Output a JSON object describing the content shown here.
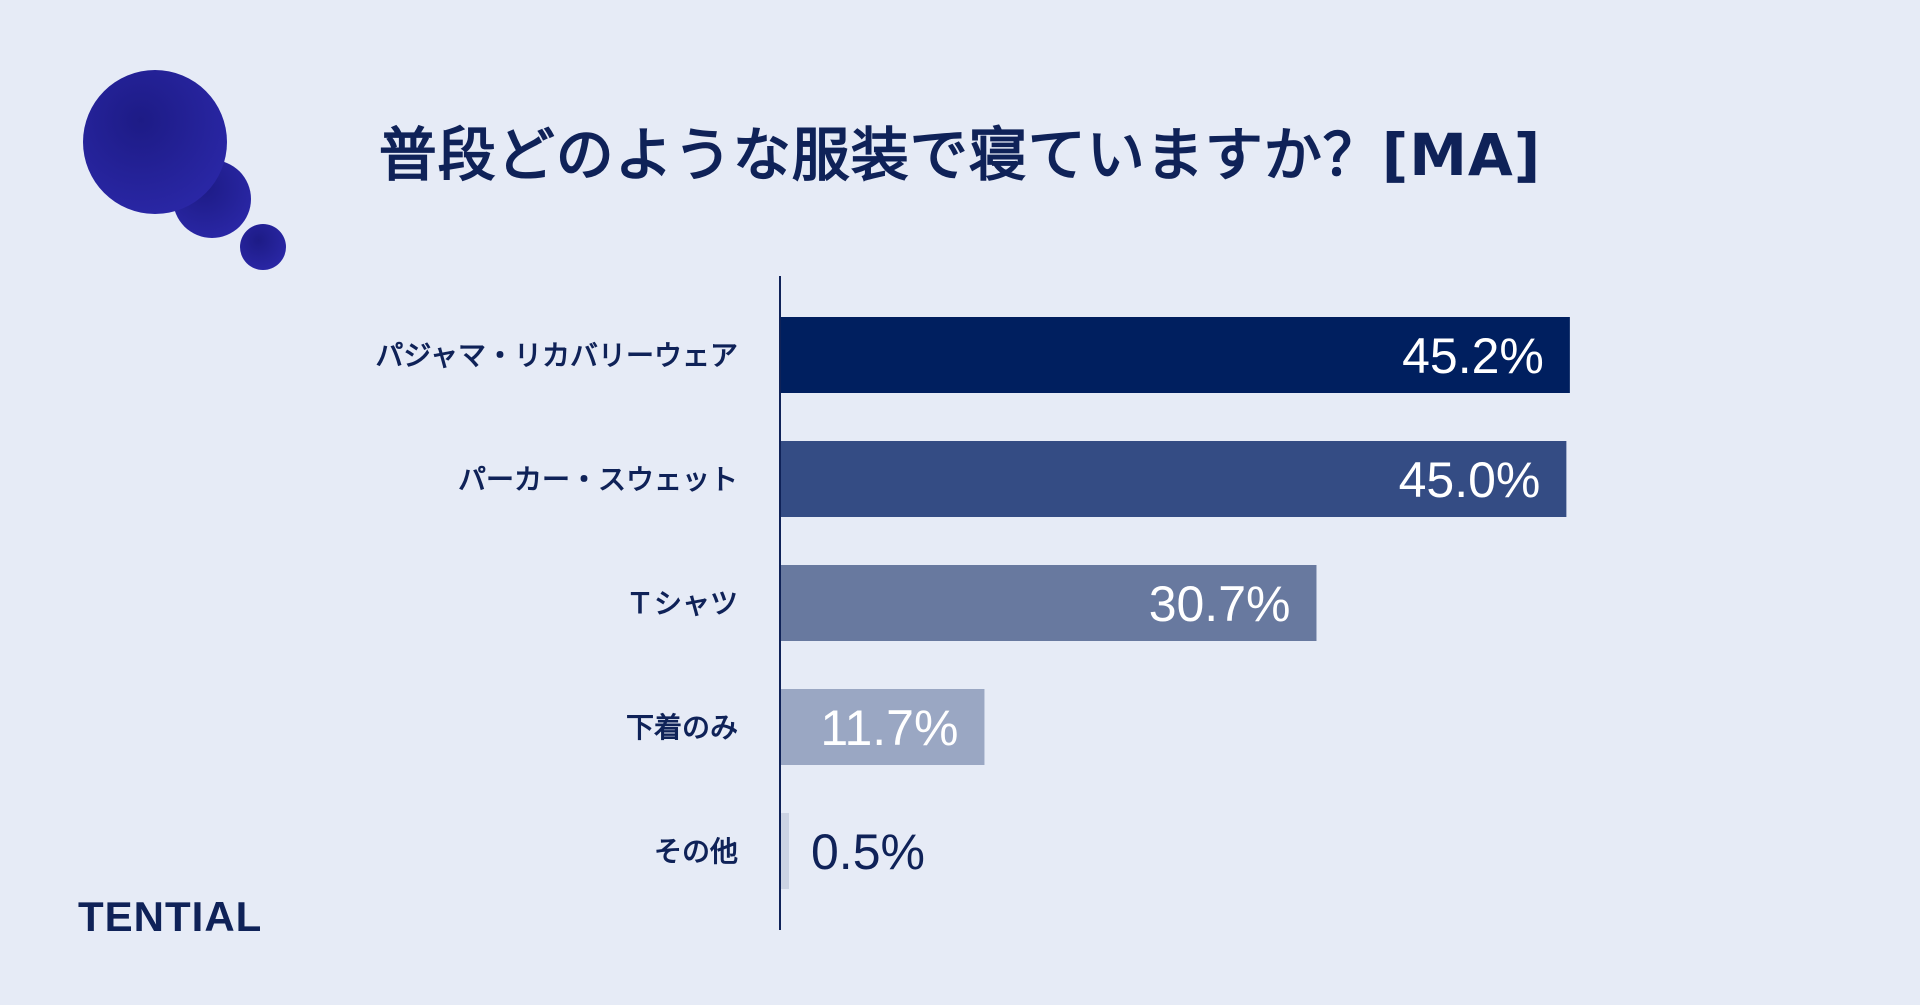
{
  "title": "普段どのような服装で寝ていますか？[MA]",
  "brand": "TENTIAL",
  "colors": {
    "background": "#e6ebf6",
    "text": "#0f2258",
    "axis": "#0f2258",
    "bars": [
      "#001f5f",
      "#344c84",
      "#68799f",
      "#9aa7c3",
      "#ccd3e3"
    ],
    "bubble": "#221f92"
  },
  "chart_data": {
    "type": "bar",
    "orientation": "horizontal",
    "title": "普段どのような服装で寝ていますか？[MA]",
    "categories": [
      "パジャマ・リカバリーウェア",
      "パーカー・スウェット",
      "Ｔシャツ",
      "下着のみ",
      "その他"
    ],
    "values": [
      45.2,
      45.0,
      30.7,
      11.7,
      0.5
    ],
    "value_labels": [
      "45.2%",
      "45.0%",
      "30.7%",
      "11.7%",
      "0.5%"
    ],
    "unit": "%",
    "xlim": [
      0,
      50
    ],
    "xlabel": "",
    "ylabel": "",
    "grid": false,
    "legend": "none"
  }
}
